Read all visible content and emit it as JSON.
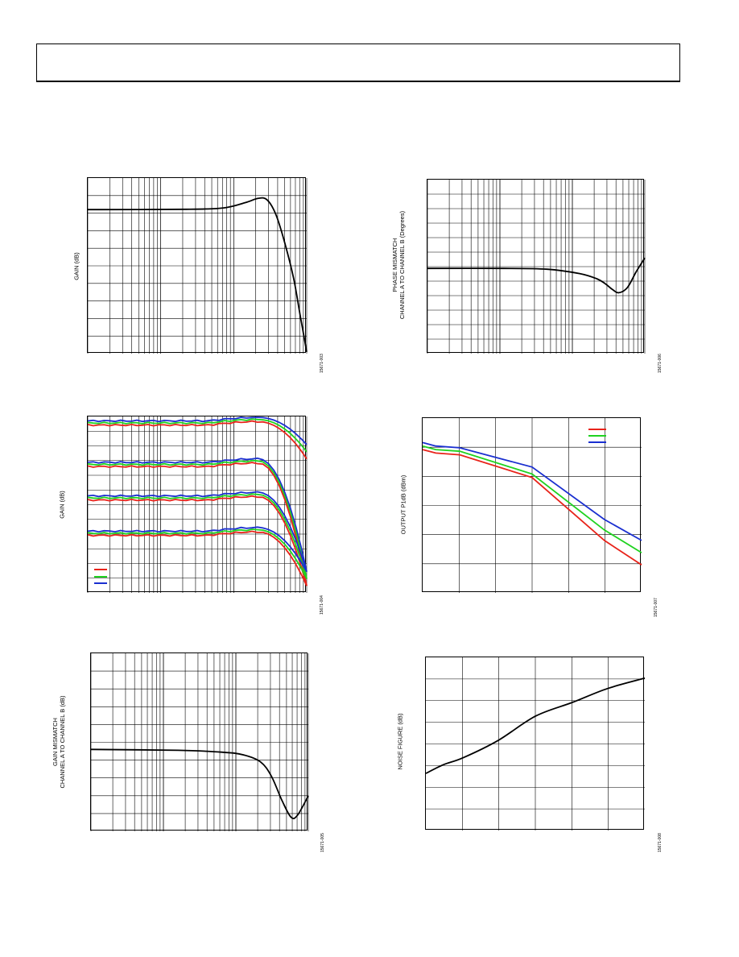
{
  "header": {
    "text": ""
  },
  "charts": [
    {
      "id": "p1",
      "ylabel": "GAIN (dB)",
      "figure_id": "15671-003"
    },
    {
      "id": "p2",
      "ylabel_lines": [
        "PHASE MISMATCH",
        "CHANNEL A TO CHANNEL B (Degrees)"
      ],
      "figure_id": "15671-006"
    },
    {
      "id": "p3",
      "ylabel": "GAIN (dB)",
      "figure_id": "15671-004"
    },
    {
      "id": "p4",
      "ylabel": "OUTPUT P1dB (dBm)",
      "figure_id": "15671-007"
    },
    {
      "id": "p5",
      "ylabel_lines": [
        "GAIN MISMATCH",
        "CHANNEL A TO CHANNEL B (dB)"
      ],
      "figure_id": "15671-005"
    },
    {
      "id": "p6",
      "ylabel": "NOISE FIGURE (dB)",
      "figure_id": "15671-008"
    }
  ],
  "colors": {
    "red": "#e8231a",
    "green": "#1fd21f",
    "blue": "#1a2fd0",
    "black": "#000000"
  },
  "chart_data": [
    {
      "type": "line",
      "x_scale": "log",
      "series": [
        {
          "values": [
            [
              0,
              0.82
            ],
            [
              0.45,
              0.822
            ],
            [
              0.62,
              0.83
            ],
            [
              0.72,
              0.86
            ],
            [
              0.78,
              0.885
            ],
            [
              0.82,
              0.875
            ],
            [
              0.86,
              0.79
            ],
            [
              0.9,
              0.63
            ],
            [
              0.94,
              0.43
            ],
            [
              0.97,
              0.22
            ],
            [
              1.0,
              0.01
            ]
          ]
        }
      ]
    },
    {
      "type": "line",
      "x_scale": "log",
      "series": [
        {
          "values": [
            [
              0,
              0.49
            ],
            [
              0.35,
              0.49
            ],
            [
              0.55,
              0.485
            ],
            [
              0.7,
              0.46
            ],
            [
              0.78,
              0.43
            ],
            [
              0.82,
              0.4
            ],
            [
              0.85,
              0.37
            ],
            [
              0.88,
              0.35
            ],
            [
              0.92,
              0.38
            ],
            [
              0.96,
              0.47
            ],
            [
              1.0,
              0.55
            ]
          ]
        }
      ]
    },
    {
      "type": "line",
      "x_scale": "log",
      "groups": [
        {
          "level": 0.975,
          "series": [
            "blue",
            "green",
            "red"
          ]
        },
        {
          "level": 0.74,
          "series": [
            "blue",
            "green",
            "red"
          ]
        },
        {
          "level": 0.55,
          "series": [
            "blue",
            "green",
            "red"
          ]
        },
        {
          "level": 0.35,
          "series": [
            "blue",
            "green",
            "red"
          ]
        }
      ]
    },
    {
      "type": "line",
      "series": [
        {
          "color": "red",
          "values": [
            [
              0,
              0.82
            ],
            [
              0.06,
              0.8
            ],
            [
              0.17,
              0.79
            ],
            [
              0.5,
              0.66
            ],
            [
              0.83,
              0.3
            ],
            [
              1.0,
              0.16
            ]
          ]
        },
        {
          "color": "green",
          "values": [
            [
              0,
              0.84
            ],
            [
              0.06,
              0.82
            ],
            [
              0.17,
              0.81
            ],
            [
              0.5,
              0.68
            ],
            [
              0.83,
              0.36
            ],
            [
              1.0,
              0.23
            ]
          ]
        },
        {
          "color": "blue",
          "values": [
            [
              0,
              0.86
            ],
            [
              0.06,
              0.84
            ],
            [
              0.17,
              0.83
            ],
            [
              0.5,
              0.72
            ],
            [
              0.83,
              0.42
            ],
            [
              1.0,
              0.3
            ]
          ]
        }
      ]
    },
    {
      "type": "line",
      "x_scale": "log",
      "series": [
        {
          "values": [
            [
              0,
              0.46
            ],
            [
              0.4,
              0.455
            ],
            [
              0.6,
              0.445
            ],
            [
              0.7,
              0.43
            ],
            [
              0.78,
              0.39
            ],
            [
              0.83,
              0.31
            ],
            [
              0.88,
              0.17
            ],
            [
              0.92,
              0.08
            ],
            [
              0.95,
              0.09
            ],
            [
              1.0,
              0.2
            ]
          ]
        }
      ]
    },
    {
      "type": "line",
      "series": [
        {
          "values": [
            [
              0,
              0.33
            ],
            [
              0.08,
              0.38
            ],
            [
              0.17,
              0.42
            ],
            [
              0.33,
              0.52
            ],
            [
              0.5,
              0.66
            ],
            [
              0.67,
              0.74
            ],
            [
              0.83,
              0.82
            ],
            [
              1.0,
              0.88
            ]
          ]
        }
      ]
    }
  ]
}
